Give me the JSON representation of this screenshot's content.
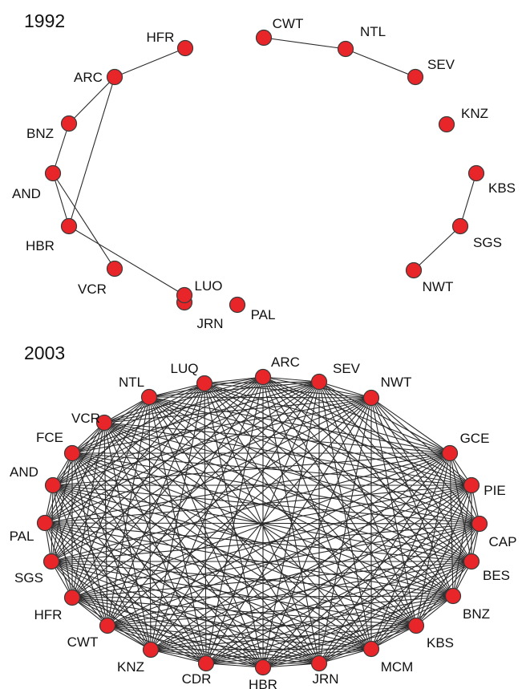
{
  "colors": {
    "node": "#e8262a",
    "edge": "#2b2b2b",
    "text": "#111111",
    "background": "#ffffff"
  },
  "panels": [
    {
      "id": "1992",
      "year": "1992",
      "nodes": [
        {
          "id": "HFR",
          "label": "HFR"
        },
        {
          "id": "ARC",
          "label": "ARC"
        },
        {
          "id": "BNZ",
          "label": "BNZ"
        },
        {
          "id": "AND",
          "label": "AND"
        },
        {
          "id": "HBR",
          "label": "HBR"
        },
        {
          "id": "VCR",
          "label": "VCR"
        },
        {
          "id": "JRN",
          "label": "JRN"
        },
        {
          "id": "LUO",
          "label": "LUO"
        },
        {
          "id": "PAL",
          "label": "PAL"
        },
        {
          "id": "CWT",
          "label": "CWT"
        },
        {
          "id": "NTL",
          "label": "NTL"
        },
        {
          "id": "SEV",
          "label": "SEV"
        },
        {
          "id": "KNZ",
          "label": "KNZ"
        },
        {
          "id": "KBS",
          "label": "KBS"
        },
        {
          "id": "SGS",
          "label": "SGS"
        },
        {
          "id": "NWT",
          "label": "NWT"
        }
      ],
      "edges": [
        [
          "HFR",
          "ARC"
        ],
        [
          "ARC",
          "BNZ"
        ],
        [
          "ARC",
          "HBR"
        ],
        [
          "BNZ",
          "AND"
        ],
        [
          "AND",
          "HBR"
        ],
        [
          "AND",
          "VCR"
        ],
        [
          "HBR",
          "LUO"
        ],
        [
          "CWT",
          "NTL"
        ],
        [
          "NTL",
          "SEV"
        ],
        [
          "KBS",
          "SGS"
        ],
        [
          "SGS",
          "NWT"
        ]
      ]
    },
    {
      "id": "2003",
      "year": "2003",
      "nodes": [
        {
          "id": "ARC",
          "label": "ARC"
        },
        {
          "id": "SEV",
          "label": "SEV"
        },
        {
          "id": "NWT",
          "label": "NWT"
        },
        {
          "id": "GCE",
          "label": "GCE"
        },
        {
          "id": "PIE",
          "label": "PIE"
        },
        {
          "id": "CAP",
          "label": "CAP"
        },
        {
          "id": "BES",
          "label": "BES"
        },
        {
          "id": "BNZ",
          "label": "BNZ"
        },
        {
          "id": "KBS",
          "label": "KBS"
        },
        {
          "id": "MCM",
          "label": "MCM"
        },
        {
          "id": "JRN",
          "label": "JRN"
        },
        {
          "id": "HBR",
          "label": "HBR"
        },
        {
          "id": "CDR",
          "label": "CDR"
        },
        {
          "id": "KNZ",
          "label": "KNZ"
        },
        {
          "id": "CWT",
          "label": "CWT"
        },
        {
          "id": "HFR",
          "label": "HFR"
        },
        {
          "id": "SGS",
          "label": "SGS"
        },
        {
          "id": "PAL",
          "label": "PAL"
        },
        {
          "id": "AND",
          "label": "AND"
        },
        {
          "id": "FCE",
          "label": "FCE"
        },
        {
          "id": "VCR",
          "label": "VCR"
        },
        {
          "id": "NTL",
          "label": "NTL"
        },
        {
          "id": "LUQ",
          "label": "LUQ"
        }
      ]
    }
  ]
}
